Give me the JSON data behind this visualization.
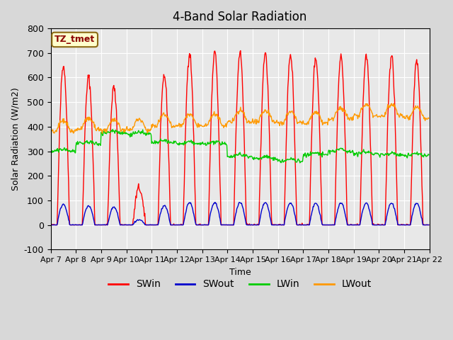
{
  "title": "4-Band Solar Radiation",
  "xlabel": "Time",
  "ylabel": "Solar Radiation (W/m2)",
  "ylim": [
    -100,
    800
  ],
  "yticks": [
    -100,
    0,
    100,
    200,
    300,
    400,
    500,
    600,
    700,
    800
  ],
  "background_color": "#d8d8d8",
  "plot_bg_color": "#e8e8e8",
  "legend_label": "TZ_tmet",
  "legend_box_color": "#ffffcc",
  "legend_box_edge": "#8b6914",
  "colors": {
    "SWin": "#ff0000",
    "SWout": "#0000cc",
    "LWin": "#00cc00",
    "LWout": "#ff9900"
  },
  "x_tick_labels": [
    "Apr 7",
    "Apr 8",
    "Apr 9",
    "Apr 10",
    "Apr 11",
    "Apr 12",
    "Apr 13",
    "Apr 14",
    "Apr 15",
    "Apr 16",
    "Apr 17",
    "Apr 18",
    "Apr 19",
    "Apr 20",
    "Apr 21",
    "Apr 22"
  ],
  "x_tick_positions": [
    0,
    24,
    48,
    72,
    96,
    120,
    144,
    168,
    192,
    216,
    240,
    264,
    288,
    312,
    336,
    360
  ],
  "SWin_peaks": [
    650,
    600,
    560,
    150,
    610,
    700,
    700,
    700,
    700,
    695,
    680,
    685,
    688,
    688,
    670
  ],
  "lwin_daily": [
    300,
    330,
    375,
    370,
    335,
    330,
    330,
    280,
    270,
    260,
    285,
    300,
    290,
    285,
    283
  ],
  "lwout_daily": [
    390,
    400,
    395,
    395,
    415,
    415,
    415,
    430,
    430,
    425,
    425,
    440,
    455,
    455,
    445
  ]
}
